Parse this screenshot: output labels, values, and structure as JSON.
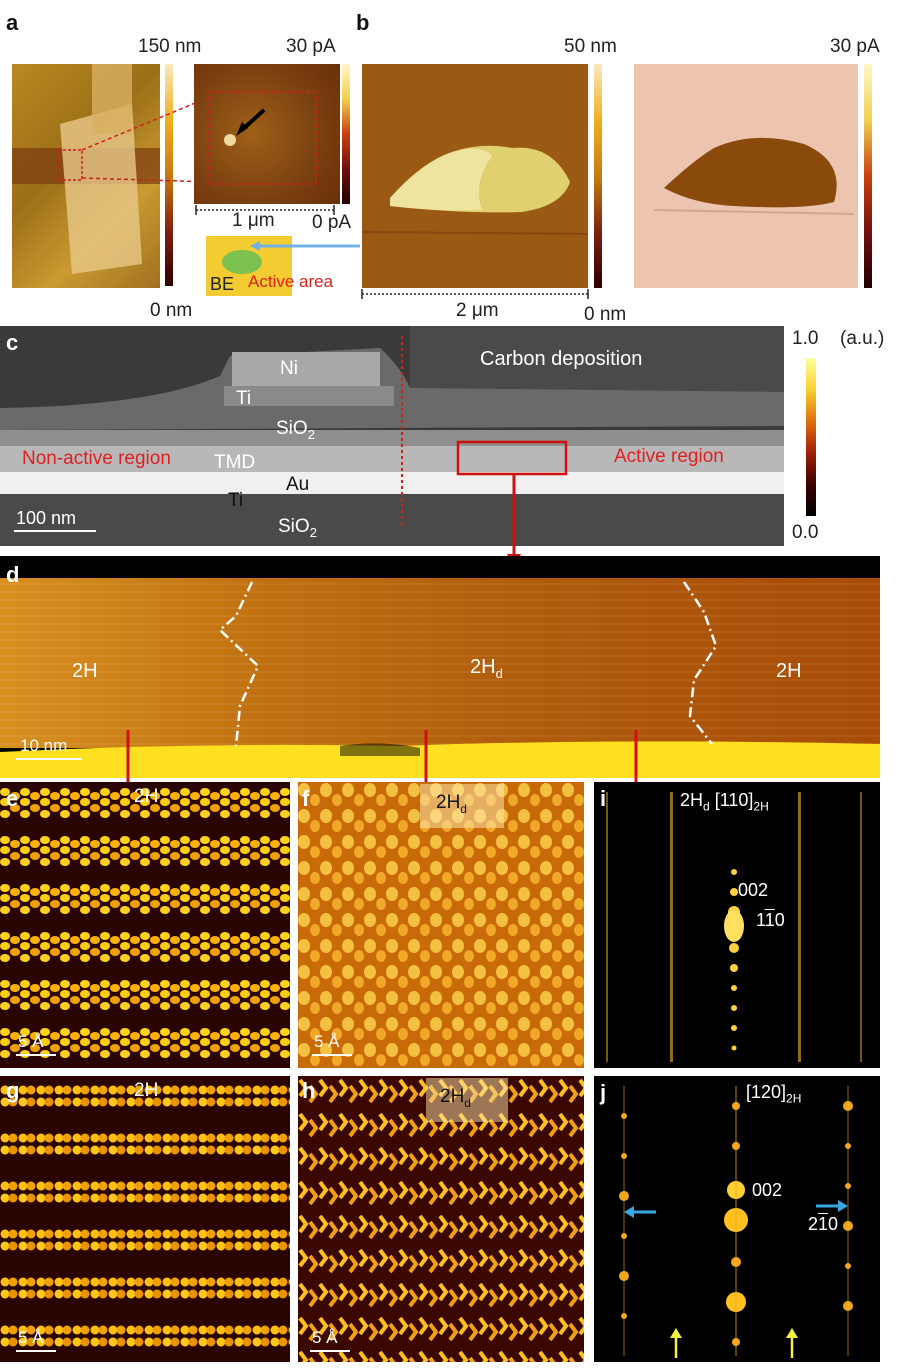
{
  "panels": {
    "a": "a",
    "b": "b",
    "c": "c",
    "d": "d",
    "e": "e",
    "f": "f",
    "g": "g",
    "h": "h",
    "i": "i",
    "j": "j"
  },
  "a": {
    "scale_top": "150 nm",
    "scale_bottom": "0 nm",
    "current_top": "30 pA",
    "current_bottom": "0 pA",
    "scalebar": "1 μm",
    "be_label": "BE",
    "active_label": "Active area"
  },
  "b": {
    "scale_top": "50 nm",
    "scale_bottom": "0 nm",
    "current_top": "30 pA",
    "scalebar": "2 μm"
  },
  "c": {
    "ni": "Ni",
    "ti_top": "Ti",
    "sio2_top": "SiO",
    "sio2_sub": "2",
    "tmd": "TMD",
    "au": "Au",
    "ti_bottom": "Ti",
    "sio2_bottom": "SiO",
    "sio2_bottom_sub": "2",
    "carbon": "Carbon deposition",
    "nonactive": "Non-active region",
    "active": "Active region",
    "scalebar": "100 nm",
    "cbar_top": "1.0",
    "cbar_unit": "(a.u.)",
    "cbar_bottom": "0.0"
  },
  "d": {
    "left": "2H",
    "middle": "2H",
    "middle_sub": "d",
    "right": "2H",
    "scalebar": "10 nm"
  },
  "e": {
    "label": "2H",
    "scalebar": "5 Å"
  },
  "f": {
    "label": "2H",
    "label_sub": "d",
    "scalebar": "5 Å"
  },
  "g": {
    "label": "2H",
    "scalebar": "5 Å"
  },
  "h": {
    "label": "2H",
    "label_sub": "d",
    "scalebar": "5 Å"
  },
  "i": {
    "label_a": "2H",
    "label_a_sub": "d",
    "label_b": "[110]",
    "label_b_sub": "2H",
    "spot1": "002",
    "spot2": "1",
    "spot2_bar": "1",
    "spot2_end": "0"
  },
  "j": {
    "label": "[120]",
    "label_sub": "2H",
    "spot1": "002",
    "spot2": "2",
    "spot2_bar": "1",
    "spot2_end": "0"
  },
  "colors": {
    "red": "#e02020",
    "arrow_red": "#d01010",
    "cyan": "#3aa8e0",
    "yellow_arrow": "#f0f040"
  }
}
